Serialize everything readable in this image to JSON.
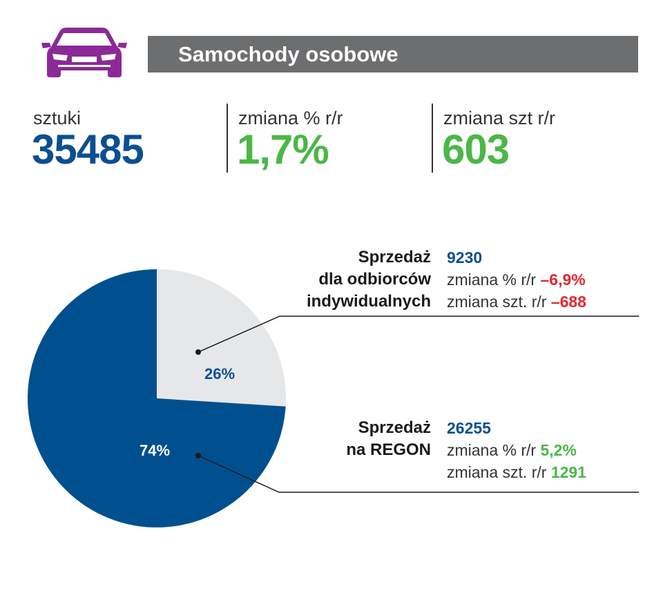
{
  "header": {
    "title": "Samochody osobowe",
    "icon": "car-icon",
    "icon_color": "#8b2a96",
    "bar_color": "#6d6e70"
  },
  "kpis": [
    {
      "label": "sztuki",
      "value": "35485",
      "color": "#0b4f91"
    },
    {
      "label": "zmiana % r/r",
      "value": "1,7%",
      "color": "#4bb748"
    },
    {
      "label": "zmiana szt r/r",
      "value": "603",
      "color": "#4bb748"
    }
  ],
  "segments": {
    "individual": {
      "title_lines": [
        "Sprzedaż",
        "dla odbiorców",
        "indywidualnych"
      ],
      "value": "9230",
      "pct_label": "zmiana % r/r",
      "pct_value": "–6,9%",
      "szt_label": "zmiana szt. r/r",
      "szt_value": "–688"
    },
    "regon": {
      "title_lines": [
        "Sprzedaż",
        "na REGON"
      ],
      "value": "26255",
      "pct_label": "zmiana % r/r",
      "pct_value": "5,2%",
      "szt_label": "zmiana szt. r/r",
      "szt_value": "1291"
    }
  },
  "chart_data": {
    "type": "pie",
    "categories": [
      "Sprzedaż dla odbiorców indywidualnych",
      "Sprzedaż na REGON"
    ],
    "values": [
      26,
      74
    ],
    "labels": [
      "26%",
      "74%"
    ],
    "colors": [
      "#e6e7e9",
      "#00508f"
    ],
    "start_angle_deg": 0,
    "direction": "clockwise"
  }
}
